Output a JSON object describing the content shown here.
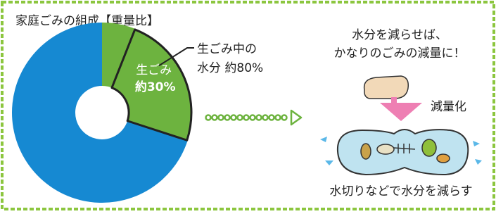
{
  "chart_data": {
    "type": "donut",
    "title": "家庭ごみの組成【重量比】",
    "categories": [
      "生ごみ",
      null
    ],
    "values": [
      30,
      70
    ],
    "value_labels": [
      "約30%",
      null
    ],
    "colors": [
      "#6db33f",
      "#1689d2"
    ],
    "moisture": {
      "lines": [
        "生ごみ中の",
        "水分 約80%"
      ],
      "value": 80
    },
    "message": [
      "水分を減らせば、",
      "かなりのごみの減量に！"
    ],
    "arrow_label": "減量化",
    "caption": "水切りなどで水分を減らす"
  }
}
